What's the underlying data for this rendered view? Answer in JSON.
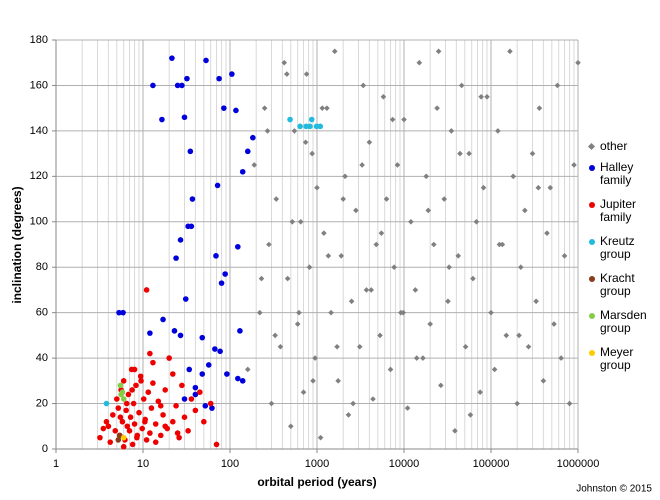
{
  "chart_data": {
    "type": "scatter",
    "xlabel": "orbital period (years)",
    "ylabel": "inclination (degrees)",
    "credit": "Johnston © 2015",
    "xscale": "log",
    "xlim": [
      1,
      1000000
    ],
    "ylim": [
      0,
      180
    ],
    "xticks": [
      1,
      10,
      100,
      1000,
      10000,
      100000,
      1000000
    ],
    "yticks": [
      0,
      20,
      40,
      60,
      80,
      100,
      120,
      140,
      160,
      180
    ],
    "grid": true,
    "minor_grid": true,
    "legend": "right",
    "series": [
      {
        "name": "other",
        "color": "#808080",
        "marker": "diamond",
        "x": [
          160,
          190,
          220,
          250,
          280,
          300,
          340,
          380,
          420,
          460,
          500,
          550,
          600,
          650,
          700,
          760,
          820,
          880,
          950,
          1000,
          1100,
          1200,
          1300,
          1450,
          1600,
          1750,
          1900,
          2100,
          2300,
          2500,
          2800,
          3100,
          3400,
          3700,
          4000,
          4400,
          4800,
          5300,
          5800,
          6300,
          7000,
          7700,
          8400,
          9200,
          10000,
          11000,
          12000,
          13500,
          15000,
          16500,
          18000,
          20000,
          22000,
          24000,
          26500,
          29000,
          32000,
          35000,
          38500,
          42000,
          46000,
          51000,
          56000,
          62000,
          68000,
          75000,
          82000,
          90000,
          100000,
          110000,
          120000,
          135000,
          150000,
          165000,
          180000,
          200000,
          220000,
          245000,
          270000,
          300000,
          330000,
          360000,
          400000,
          440000,
          480000,
          530000,
          580000,
          640000,
          700000,
          800000,
          900000,
          1000000,
          230,
          270,
          330,
          450,
          520,
          620,
          740,
          900,
          1150,
          1350,
          1700,
          2000,
          2600,
          3300,
          4200,
          5500,
          7400,
          9800,
          14000,
          19000,
          25000,
          33000,
          44000,
          58000,
          77000,
          125000,
          210000,
          350000
        ],
        "values": [
          35,
          125,
          60,
          150,
          90,
          20,
          110,
          45,
          170,
          75,
          10,
          140,
          55,
          100,
          25,
          165,
          80,
          130,
          40,
          115,
          5,
          95,
          150,
          60,
          175,
          30,
          85,
          120,
          15,
          65,
          105,
          45,
          160,
          70,
          135,
          22,
          90,
          50,
          155,
          110,
          35,
          80,
          125,
          60,
          145,
          18,
          100,
          70,
          170,
          40,
          120,
          55,
          90,
          150,
          28,
          110,
          65,
          140,
          8,
          85,
          160,
          45,
          130,
          75,
          100,
          25,
          115,
          155,
          60,
          35,
          140,
          90,
          50,
          175,
          120,
          20,
          80,
          105,
          45,
          130,
          65,
          150,
          30,
          95,
          115,
          55,
          160,
          40,
          85,
          20,
          125,
          170,
          75,
          140,
          50,
          165,
          100,
          60,
          135,
          30,
          150,
          85,
          45,
          110,
          20,
          125,
          70,
          95,
          145,
          60,
          40,
          105,
          175,
          80,
          130,
          15,
          155,
          90,
          50,
          115
        ]
      },
      {
        "name": "Halley family",
        "color": "#0000dd",
        "marker": "circle",
        "x": [
          21.5,
          13,
          25,
          28,
          53,
          32,
          30,
          16.5,
          75,
          105,
          85,
          117,
          183,
          35,
          160,
          140,
          72,
          37,
          33,
          36,
          27,
          24,
          123,
          69,
          88,
          80,
          5.3,
          5.9,
          31,
          130,
          17,
          23,
          12,
          27,
          48,
          67,
          77,
          57,
          34,
          48,
          92,
          123,
          140,
          40,
          52,
          62,
          40,
          30
        ],
        "values": [
          172,
          160,
          160,
          160,
          171,
          163,
          146,
          145,
          163,
          165,
          150,
          149,
          137,
          131,
          131,
          122,
          116,
          110,
          98,
          98,
          92,
          84,
          89,
          85,
          77,
          73,
          60,
          60,
          66,
          52,
          57,
          52,
          51,
          50,
          49,
          44,
          43,
          37,
          35,
          33,
          33,
          31,
          30,
          27,
          19,
          18,
          24,
          22
        ]
      },
      {
        "name": "Jupiter family",
        "color": "#ee0000",
        "marker": "circle",
        "x": [
          3.2,
          3.5,
          3.8,
          4.2,
          4.5,
          4.8,
          5.0,
          5.2,
          5.4,
          5.6,
          5.8,
          6.0,
          6.2,
          6.4,
          6.6,
          6.8,
          7.0,
          7.2,
          7.4,
          7.6,
          7.8,
          8.0,
          8.3,
          8.6,
          9.0,
          9.4,
          9.8,
          10.2,
          10.6,
          11,
          11.5,
          12,
          12.5,
          13,
          14,
          15,
          16,
          17,
          18,
          19,
          20,
          22,
          24,
          26,
          28,
          30,
          33,
          36,
          40,
          45,
          11,
          5.5,
          6.5,
          7.5,
          8.5,
          9.5,
          10.5,
          12,
          14,
          16,
          18,
          22,
          25,
          50,
          60,
          70,
          4.0,
          6.0,
          8.0,
          13
        ],
        "values": [
          5,
          9,
          12,
          3,
          15,
          8,
          22,
          18,
          6,
          26,
          12,
          30,
          4,
          17,
          10,
          24,
          8,
          14,
          35,
          2,
          20,
          11,
          28,
          6,
          16,
          32,
          9,
          22,
          13,
          4,
          25,
          7,
          18,
          38,
          11,
          21,
          6,
          15,
          26,
          9,
          40,
          12,
          19,
          5,
          28,
          14,
          8,
          22,
          17,
          25,
          70,
          14,
          20,
          26,
          5,
          30,
          12,
          42,
          3,
          19,
          10,
          33,
          7,
          12,
          20,
          2,
          10,
          1,
          35,
          29
        ]
      },
      {
        "name": "Kreutz group",
        "color": "#22bbdd",
        "marker": "circle",
        "x": [
          490,
          640,
          750,
          870,
          830,
          990,
          1090,
          3.8
        ],
        "values": [
          145,
          142,
          142,
          145,
          142,
          142,
          142,
          20
        ]
      },
      {
        "name": "Kracht group",
        "color": "#8b3a1a",
        "marker": "circle",
        "x": [
          5.2,
          5.4
        ],
        "values": [
          4,
          6
        ]
      },
      {
        "name": "Marsden group",
        "color": "#88cc44",
        "marker": "circle",
        "x": [
          5.5,
          5.8,
          6,
          5.6
        ],
        "values": [
          28,
          25,
          22,
          24
        ]
      },
      {
        "name": "Meyer group",
        "color": "#ffcc00",
        "marker": "circle",
        "x": [
          6
        ],
        "values": [
          5
        ]
      }
    ]
  }
}
